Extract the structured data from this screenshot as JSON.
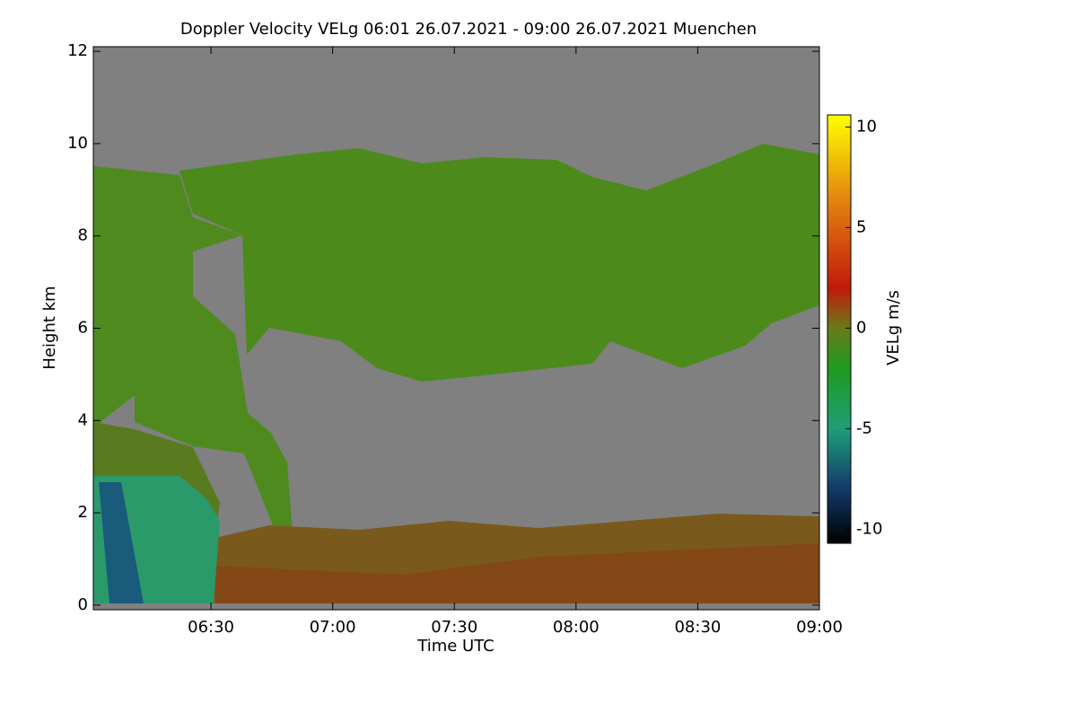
{
  "chart_data": {
    "type": "heatmap",
    "title": "Doppler Velocity VELg   06:01 26.07.2021 - 09:00 26.07.2021 Muenchen",
    "x_label": "Time UTC",
    "y_label": "Height km",
    "colorbar_label": "VELg m/s",
    "xlim": [
      361,
      540
    ],
    "xticks": [
      {
        "value": 390,
        "label": "06:30"
      },
      {
        "value": 420,
        "label": "07:00"
      },
      {
        "value": 450,
        "label": "07:30"
      },
      {
        "value": 480,
        "label": "08:00"
      },
      {
        "value": 510,
        "label": "08:30"
      },
      {
        "value": 540,
        "label": "09:00"
      }
    ],
    "ylim": [
      -0.1,
      12.1
    ],
    "yticks": [
      0,
      2,
      4,
      6,
      8,
      10,
      12
    ],
    "clim": [
      -10.7,
      10.6
    ],
    "cticks": [
      -10,
      -5,
      0,
      5,
      10
    ],
    "colormap": [
      {
        "value": -10.7,
        "color": "#000000"
      },
      {
        "value": -8,
        "color": "#123a6a"
      },
      {
        "value": -5,
        "color": "#1f9e78"
      },
      {
        "value": -2,
        "color": "#1e9a1e"
      },
      {
        "value": 0,
        "color": "#6a7a1a"
      },
      {
        "value": 2,
        "color": "#c21a0a"
      },
      {
        "value": 6,
        "color": "#e07a10"
      },
      {
        "value": 10.6,
        "color": "#ffff00"
      }
    ]
  }
}
